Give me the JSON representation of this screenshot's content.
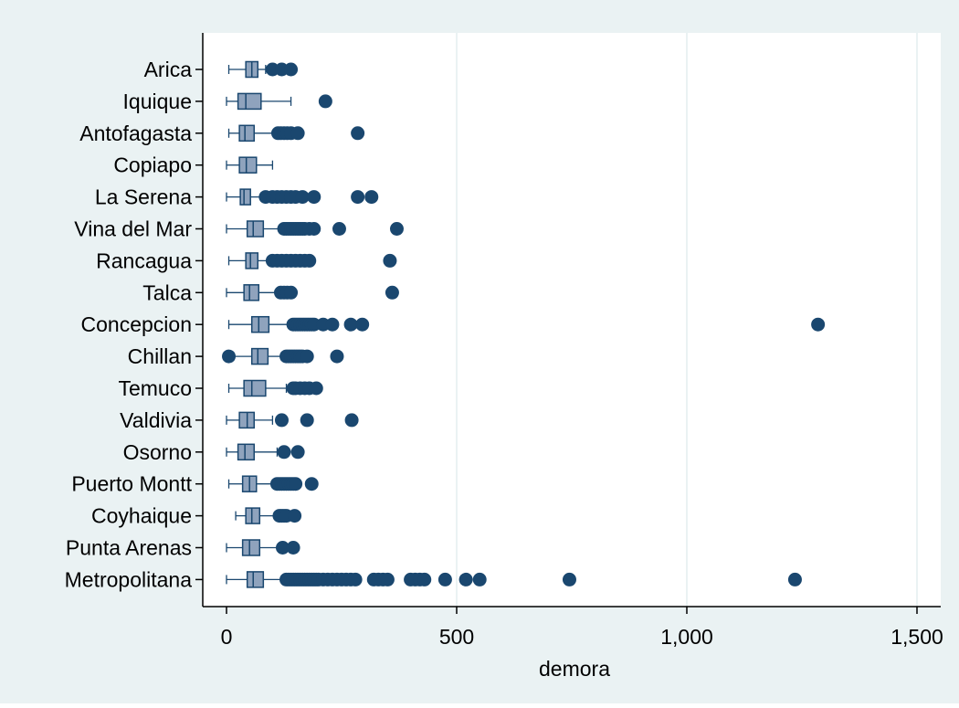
{
  "chart_data": {
    "type": "box",
    "orientation": "horizontal",
    "title": "",
    "xlabel": "demora",
    "ylabel": "",
    "xlim": [
      0,
      1500
    ],
    "xticks": [
      0,
      500,
      1000,
      1500
    ],
    "xtick_labels": [
      "0",
      "500",
      "1,000",
      "1,500"
    ],
    "grid": true,
    "legend": "none",
    "colors": {
      "outer_background": "#EAF2F3",
      "plot_background": "#FFFFFF",
      "box_fill": "#8FA3BD",
      "box_stroke": "#1A476F",
      "outlier": "#1A476F",
      "grid": "#EAF2F3"
    },
    "categories": [
      "Arica",
      "Iquique",
      "Antofagasta",
      "Copiapo",
      "La Serena",
      "Vina del Mar",
      "Rancagua",
      "Talca",
      "Concepcion",
      "Chillan",
      "Temuco",
      "Valdivia",
      "Osorno",
      "Puerto Montt",
      "Coyhaique",
      "Punta Arenas",
      "Metropolitana"
    ],
    "boxes": [
      {
        "whisker_low": 5,
        "q1": 42,
        "median": 55,
        "q3": 68,
        "whisker_high": 85,
        "outliers": [
          100,
          120,
          140
        ]
      },
      {
        "whisker_low": 0,
        "q1": 25,
        "median": 42,
        "q3": 75,
        "whisker_high": 140,
        "outliers": [
          215
        ]
      },
      {
        "whisker_low": 5,
        "q1": 28,
        "median": 40,
        "q3": 60,
        "whisker_high": 105,
        "outliers": [
          112,
          118,
          125,
          132,
          140,
          155,
          285
        ]
      },
      {
        "whisker_low": 0,
        "q1": 28,
        "median": 43,
        "q3": 65,
        "whisker_high": 100,
        "outliers": []
      },
      {
        "whisker_low": 0,
        "q1": 30,
        "median": 38,
        "q3": 52,
        "whisker_high": 75,
        "outliers": [
          85,
          100,
          110,
          120,
          130,
          140,
          150,
          165,
          190,
          285,
          315
        ]
      },
      {
        "whisker_low": 0,
        "q1": 45,
        "median": 58,
        "q3": 80,
        "whisker_high": 115,
        "outliers": [
          125,
          130,
          135,
          140,
          145,
          150,
          155,
          160,
          165,
          170,
          180,
          190,
          245,
          370
        ]
      },
      {
        "whisker_low": 5,
        "q1": 42,
        "median": 52,
        "q3": 68,
        "whisker_high": 90,
        "outliers": [
          100,
          110,
          120,
          130,
          140,
          150,
          160,
          170,
          180,
          355
        ]
      },
      {
        "whisker_low": 0,
        "q1": 38,
        "median": 50,
        "q3": 70,
        "whisker_high": 110,
        "outliers": [
          118,
          125,
          132,
          140,
          360
        ]
      },
      {
        "whisker_low": 5,
        "q1": 55,
        "median": 70,
        "q3": 92,
        "whisker_high": 135,
        "outliers": [
          145,
          150,
          155,
          160,
          165,
          170,
          175,
          180,
          185,
          190,
          210,
          230,
          270,
          295,
          1285
        ]
      },
      {
        "whisker_low": 15,
        "q1": 55,
        "median": 68,
        "q3": 90,
        "whisker_high": 120,
        "outliers": [
          5,
          130,
          135,
          140,
          145,
          150,
          155,
          160,
          165,
          175,
          240
        ]
      },
      {
        "whisker_low": 5,
        "q1": 38,
        "median": 55,
        "q3": 85,
        "whisker_high": 130,
        "outliers": [
          145,
          150,
          160,
          170,
          180,
          195
        ]
      },
      {
        "whisker_low": 0,
        "q1": 28,
        "median": 45,
        "q3": 60,
        "whisker_high": 100,
        "outliers": [
          120,
          175,
          272
        ]
      },
      {
        "whisker_low": 0,
        "q1": 25,
        "median": 40,
        "q3": 60,
        "whisker_high": 110,
        "outliers": [
          125,
          155
        ]
      },
      {
        "whisker_low": 5,
        "q1": 35,
        "median": 50,
        "q3": 65,
        "whisker_high": 100,
        "outliers": [
          110,
          115,
          120,
          125,
          130,
          135,
          140,
          145,
          150,
          185
        ]
      },
      {
        "whisker_low": 20,
        "q1": 42,
        "median": 55,
        "q3": 72,
        "whisker_high": 110,
        "outliers": [
          115,
          120,
          125,
          130,
          148
        ]
      },
      {
        "whisker_low": 0,
        "q1": 35,
        "median": 50,
        "q3": 72,
        "whisker_high": 115,
        "outliers": [
          122,
          145
        ]
      },
      {
        "whisker_low": 0,
        "q1": 45,
        "median": 58,
        "q3": 80,
        "whisker_high": 120,
        "outliers": [
          130,
          135,
          140,
          145,
          150,
          155,
          160,
          165,
          170,
          175,
          180,
          185,
          190,
          195,
          200,
          210,
          220,
          230,
          240,
          250,
          260,
          270,
          280,
          320,
          330,
          340,
          350,
          400,
          410,
          420,
          430,
          475,
          520,
          550,
          745,
          1235
        ]
      }
    ]
  }
}
